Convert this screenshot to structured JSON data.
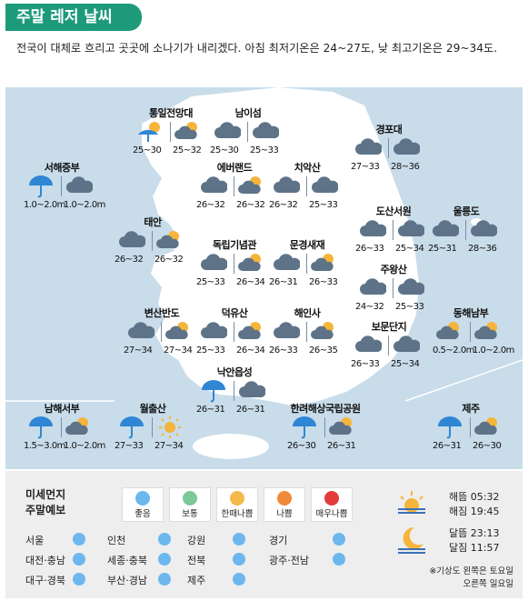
{
  "header": {
    "title": "주말 레저 날씨"
  },
  "description": "전국이 대체로 흐리고 곳곳에 소나기가 내리겠다. 아침 최저기온은 24~27도, 낮 최고기온은 29~34도.",
  "locations": [
    {
      "name": "통일전망대",
      "sat": "25~30",
      "sun": "25~32",
      "sat_icon": "sun-rain-icon",
      "sun_icon": "partly-cloudy-icon"
    },
    {
      "name": "남이섬",
      "sat": "25~30",
      "sun": "25~33",
      "sat_icon": "cloud-icon",
      "sun_icon": "cloud-icon"
    },
    {
      "name": "경포대",
      "sat": "27~33",
      "sun": "28~36",
      "sat_icon": "cloud-icon",
      "sun_icon": "cloud-icon"
    },
    {
      "name": "서해중부",
      "sat": "1.0~2.0m",
      "sun": "1.0~2.0m",
      "sat_icon": "umbrella-icon",
      "sun_icon": "cloud-icon"
    },
    {
      "name": "에버랜드",
      "sat": "26~32",
      "sun": "26~32",
      "sat_icon": "cloud-icon",
      "sun_icon": "partly-cloudy-icon"
    },
    {
      "name": "치악산",
      "sat": "26~32",
      "sun": "25~33",
      "sat_icon": "cloud-icon",
      "sun_icon": "cloud-icon"
    },
    {
      "name": "태안",
      "sat": "26~32",
      "sun": "26~32",
      "sat_icon": "cloud-icon",
      "sun_icon": "partly-cloudy-icon"
    },
    {
      "name": "도산서원",
      "sat": "26~33",
      "sun": "25~34",
      "sat_icon": "cloud-icon",
      "sun_icon": "cloud-icon"
    },
    {
      "name": "울릉도",
      "sat": "25~31",
      "sun": "28~36",
      "sat_icon": "cloud-icon",
      "sun_icon": "cloud-icon"
    },
    {
      "name": "독립기념관",
      "sat": "25~33",
      "sun": "26~34",
      "sat_icon": "cloud-icon",
      "sun_icon": "partly-cloudy-icon"
    },
    {
      "name": "문경새재",
      "sat": "26~31",
      "sun": "26~33",
      "sat_icon": "cloud-icon",
      "sun_icon": "partly-cloudy-icon"
    },
    {
      "name": "주왕산",
      "sat": "24~32",
      "sun": "25~33",
      "sat_icon": "cloud-icon",
      "sun_icon": "cloud-icon"
    },
    {
      "name": "변산반도",
      "sat": "27~34",
      "sun": "27~34",
      "sat_icon": "cloud-icon",
      "sun_icon": "partly-cloudy-icon"
    },
    {
      "name": "덕유산",
      "sat": "25~33",
      "sun": "26~34",
      "sat_icon": "cloud-icon",
      "sun_icon": "partly-cloudy-icon"
    },
    {
      "name": "해인사",
      "sat": "26~33",
      "sun": "26~35",
      "sat_icon": "cloud-icon",
      "sun_icon": "partly-cloudy-icon"
    },
    {
      "name": "보문단지",
      "sat": "26~33",
      "sun": "25~34",
      "sat_icon": "cloud-icon",
      "sun_icon": "cloud-icon"
    },
    {
      "name": "동해남부",
      "sat": "0.5~2.0m",
      "sun": "1.0~2.0m",
      "sat_icon": "partly-cloudy-icon",
      "sun_icon": "partly-cloudy-icon"
    },
    {
      "name": "낙안읍성",
      "sat": "26~31",
      "sun": "26~31",
      "sat_icon": "umbrella-icon",
      "sun_icon": "cloud-icon"
    },
    {
      "name": "남해서부",
      "sat": "1.5~3.0m",
      "sun": "1.0~2.0m",
      "sat_icon": "umbrella-icon",
      "sun_icon": "partly-cloudy-icon"
    },
    {
      "name": "월출산",
      "sat": "27~33",
      "sun": "27~34",
      "sat_icon": "umbrella-icon",
      "sun_icon": "sun-icon"
    },
    {
      "name": "한려해상국립공원",
      "sat": "26~30",
      "sun": "26~31",
      "sat_icon": "umbrella-icon",
      "sun_icon": "partly-cloudy-icon"
    },
    {
      "name": "제주",
      "sat": "26~31",
      "sun": "26~30",
      "sat_icon": "umbrella-icon",
      "sun_icon": "partly-cloudy-icon"
    }
  ],
  "dust": {
    "title_line1": "미세먼지",
    "title_line2": "주말예보",
    "legend": [
      {
        "label": "좋음",
        "color": "#6cb8ee"
      },
      {
        "label": "보통",
        "color": "#7ec99a"
      },
      {
        "label": "한때나쁨",
        "color": "#f5b94a"
      },
      {
        "label": "나쁨",
        "color": "#f08a3a"
      },
      {
        "label": "매우나쁨",
        "color": "#e23b3b"
      }
    ],
    "regions": [
      "서울",
      "인천",
      "강원",
      "경기",
      "대전·충남",
      "세종·충북",
      "전북",
      "광주·전남",
      "대구·경북",
      "부산·경남",
      "제주"
    ]
  },
  "sun": {
    "sunrise": "해뜸 05:32",
    "sunset": "해짐 19:45"
  },
  "moon": {
    "moonrise": "달뜸 23:13",
    "moonset": "달짐 11:57"
  },
  "note": {
    "line1": "※기상도 왼쪽은 토요일",
    "line2": "오른쪽 일요일"
  }
}
